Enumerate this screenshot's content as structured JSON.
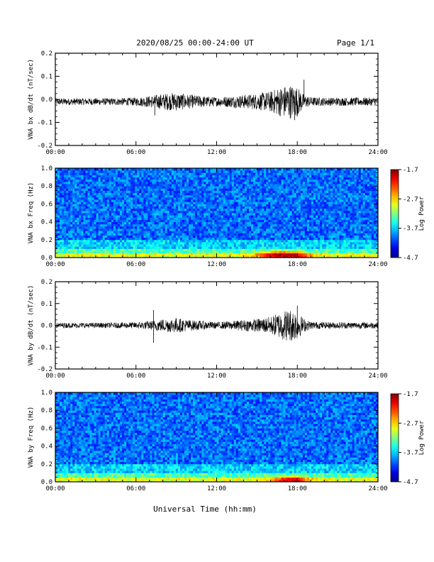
{
  "header": {
    "title": "2020/08/25  00:00-24:00 UT",
    "page": "Page 1/1"
  },
  "xlabel": "Universal Time (hh:mm)",
  "time_ticks": [
    "00:00",
    "06:00",
    "12:00",
    "18:00",
    "24:00"
  ],
  "chart_data": [
    {
      "type": "line",
      "ylabel": "VNA bx dB/dt (nT/sec)",
      "xlim": [
        0,
        24
      ],
      "ylim": [
        -0.2,
        0.2
      ],
      "yticks": [
        "0.2",
        "0.1",
        "0.0",
        "-0.1",
        "-0.2"
      ],
      "baseline": -0.01,
      "envelope": {
        "hours": [
          0,
          2,
          4,
          6,
          7,
          7.5,
          8,
          9,
          10,
          11,
          12,
          13,
          14,
          15,
          16,
          16.5,
          17,
          17.5,
          18,
          18.5,
          19,
          20,
          22,
          24
        ],
        "amplitude": [
          0.015,
          0.015,
          0.015,
          0.018,
          0.025,
          0.03,
          0.035,
          0.04,
          0.03,
          0.025,
          0.02,
          0.025,
          0.03,
          0.035,
          0.045,
          0.06,
          0.07,
          0.075,
          0.065,
          0.03,
          0.02,
          0.018,
          0.018,
          0.018
        ]
      },
      "spikes": [
        {
          "hour": 7.4,
          "value": -0.07
        },
        {
          "hour": 18.5,
          "value": 0.085
        },
        {
          "hour": 17.8,
          "value": -0.09
        }
      ]
    },
    {
      "type": "heatmap",
      "ylabel": "VNA bx Freq (Hz)",
      "xlim": [
        0,
        24
      ],
      "ylim": [
        0.0,
        1.0
      ],
      "yticks": [
        "1.0",
        "0.8",
        "0.6",
        "0.4",
        "0.2",
        "0.0"
      ],
      "colorbar": {
        "label": "Log Power",
        "ticks": [
          "-1.7",
          "-2.7",
          "-3.7",
          "-4.7"
        ],
        "min": -4.7,
        "max": -1.7
      },
      "hotspots": [
        {
          "hour": 16.5,
          "freq": 0.03,
          "level": -2.0
        },
        {
          "hour": 17.5,
          "freq": 0.02,
          "level": -1.8
        }
      ]
    },
    {
      "type": "line",
      "ylabel": "VNA by dB/dt (nT/sec)",
      "xlim": [
        0,
        24
      ],
      "ylim": [
        -0.2,
        0.2
      ],
      "yticks": [
        "0.2",
        "0.1",
        "0.0",
        "-0.1",
        "-0.2"
      ],
      "baseline": 0.0,
      "envelope": {
        "hours": [
          0,
          2,
          4,
          6,
          7,
          7.5,
          8,
          9,
          10,
          11,
          12,
          13,
          14,
          15,
          16,
          16.5,
          17,
          17.5,
          18,
          18.5,
          19,
          20,
          22,
          24
        ],
        "amplitude": [
          0.012,
          0.012,
          0.012,
          0.015,
          0.02,
          0.025,
          0.03,
          0.035,
          0.025,
          0.02,
          0.015,
          0.02,
          0.025,
          0.03,
          0.04,
          0.055,
          0.07,
          0.075,
          0.065,
          0.03,
          0.018,
          0.015,
          0.015,
          0.015
        ]
      },
      "spikes": [
        {
          "hour": 7.3,
          "value": 0.07
        },
        {
          "hour": 7.3,
          "value": -0.08
        },
        {
          "hour": 18.0,
          "value": 0.09
        }
      ]
    },
    {
      "type": "heatmap",
      "ylabel": "VNA by Freq (Hz)",
      "xlim": [
        0,
        24
      ],
      "ylim": [
        0.0,
        1.0
      ],
      "yticks": [
        "1.0",
        "0.8",
        "0.6",
        "0.4",
        "0.2",
        "0.0"
      ],
      "colorbar": {
        "label": "Log Power",
        "ticks": [
          "-1.7",
          "-2.7",
          "-3.7",
          "-4.7"
        ],
        "min": -4.7,
        "max": -1.7
      },
      "hotspots": [
        {
          "hour": 17.5,
          "freq": 0.02,
          "level": -1.9
        }
      ]
    }
  ],
  "colors": {
    "line": "#000000",
    "low": "#000080",
    "high": "#ff0000"
  }
}
